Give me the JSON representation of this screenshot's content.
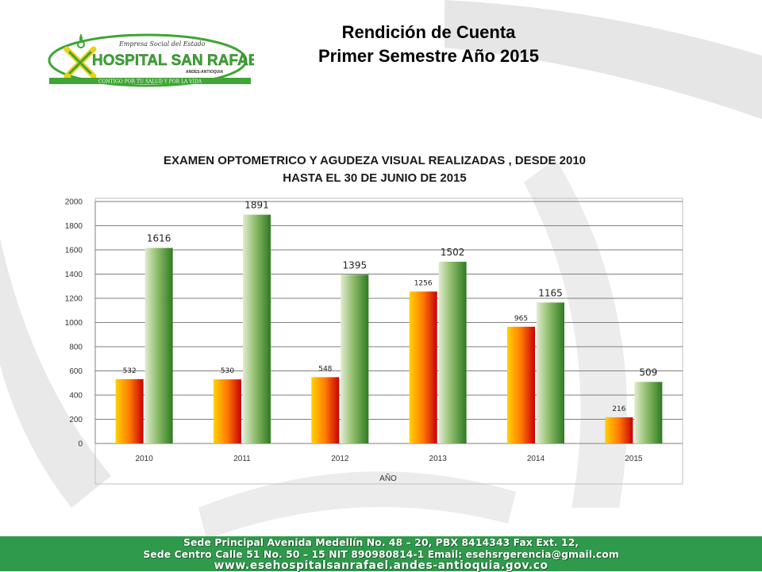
{
  "slide": {
    "title_line1": "Rendición de Cuenta",
    "title_line2": "Primer Semestre  Año  2015"
  },
  "logo": {
    "org_top": "Empresa Social del Estado",
    "name": "HOSPITAL SAN RAFAEL",
    "location": "ANDES-ANTIOQUIA",
    "slogan": "CONTIGO POR TU SALUD Y POR LA VIDA"
  },
  "chart_data": {
    "type": "bar",
    "title_line1": "EXAMEN OPTOMETRICO Y AGUDEZA VISUAL REALIZADAS , DESDE 2010",
    "title_line2": "HASTA EL 30 DE JUNIO DE 2015",
    "categories": [
      "2010",
      "2011",
      "2012",
      "2013",
      "2014",
      "2015"
    ],
    "series": [
      {
        "values": [
          532,
          530,
          548,
          1256,
          965,
          216
        ],
        "color": "#ff0000"
      },
      {
        "values": [
          1616,
          1891,
          1395,
          1502,
          1165,
          509
        ],
        "color": "#3a8a2a"
      }
    ],
    "xlabel": "AÑO",
    "ylabel": "",
    "ylim": [
      0,
      2000
    ],
    "yticks": [
      0,
      200,
      400,
      600,
      800,
      1000,
      1200,
      1400,
      1600,
      1800,
      2000
    ],
    "grid": true,
    "legend": "none"
  },
  "footer": {
    "line1": "Sede Principal Avenida Medellín No. 48 – 20, PBX 8414343 Fax Ext. 12,",
    "line2": "Sede Centro Calle 51 No. 50 – 15 NIT 890980814-1 Email: esehsrgerencia@gmail.com",
    "line3": "www.esehospitalsanrafael.andes-antioquia.gov.co"
  },
  "colors": {
    "footer_bg": "#2f9a4b",
    "logo_green": "#3fa535",
    "logo_yellow": "#e8d21a",
    "watermark": "#e3e3e3"
  }
}
